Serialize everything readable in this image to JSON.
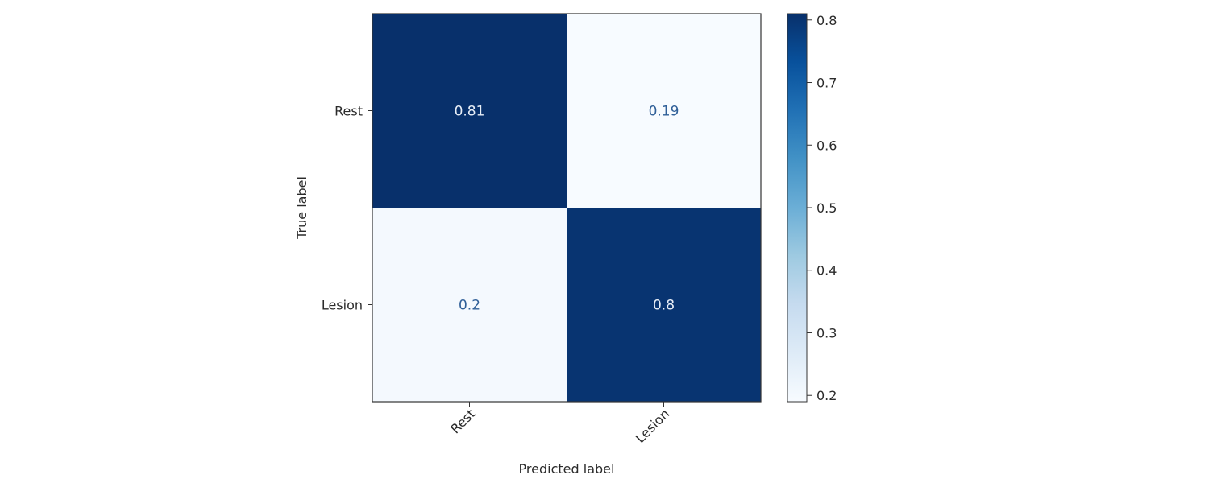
{
  "chart_data": {
    "type": "heatmap",
    "title": "",
    "xlabel": "Predicted label",
    "ylabel": "True label",
    "x_categories": [
      "Rest",
      "Lesion"
    ],
    "y_categories": [
      "Rest",
      "Lesion"
    ],
    "values": [
      [
        0.81,
        0.19
      ],
      [
        0.2,
        0.8
      ]
    ],
    "cell_labels": [
      [
        "0.81",
        "0.19"
      ],
      [
        "0.2",
        "0.8"
      ]
    ],
    "colormap": "Blues",
    "colorbar": {
      "range": [
        0.19,
        0.81
      ],
      "ticks": [
        0.2,
        0.3,
        0.4,
        0.5,
        0.6,
        0.7,
        0.8
      ],
      "tick_labels": [
        "0.2",
        "0.3",
        "0.4",
        "0.5",
        "0.6",
        "0.7",
        "0.8"
      ]
    },
    "x_tick_rotation": "45 degrees",
    "colors": {
      "dark": "#08306b",
      "light": "#f7fbff",
      "dark_text": "#e8eef7",
      "light_text": "#2f5f98"
    }
  }
}
